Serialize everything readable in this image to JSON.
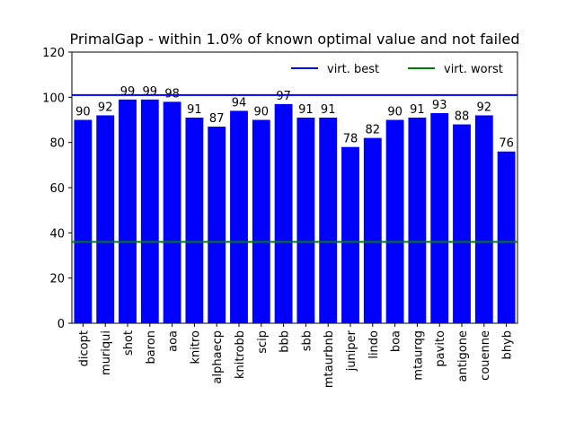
{
  "chart_data": {
    "type": "bar",
    "title": "PrimalGap - within 1.0% of known optimal value and not failed",
    "xlabel": "",
    "ylabel": "",
    "ylim": [
      0,
      120
    ],
    "yticks": [
      0,
      20,
      40,
      60,
      80,
      100,
      120
    ],
    "categories": [
      "dicopt",
      "muriqui",
      "shot",
      "baron",
      "aoa",
      "knitro",
      "alphaecp",
      "knitrobb",
      "scip",
      "bbb",
      "sbb",
      "mtaurbnb",
      "juniper",
      "lindo",
      "boa",
      "mtaurqg",
      "pavito",
      "antigone",
      "couenne",
      "bhyb"
    ],
    "values": [
      90,
      92,
      99,
      99,
      98,
      91,
      87,
      94,
      90,
      97,
      91,
      91,
      78,
      82,
      90,
      91,
      93,
      88,
      92,
      76
    ],
    "data_labels": [
      "90",
      "92",
      "99",
      "99",
      "98",
      "91",
      "87",
      "94",
      "90",
      "97",
      "91",
      "91",
      "78",
      "82",
      "90",
      "91",
      "93",
      "88",
      "92",
      "76"
    ],
    "bar_color": "#0000ff",
    "reference_lines": [
      {
        "name": "virt. best",
        "value": 101,
        "color": "#0000ff"
      },
      {
        "name": "virt. worst",
        "value": 36,
        "color": "#008000"
      }
    ],
    "legend": {
      "placement": "top-right"
    },
    "grid": false
  }
}
